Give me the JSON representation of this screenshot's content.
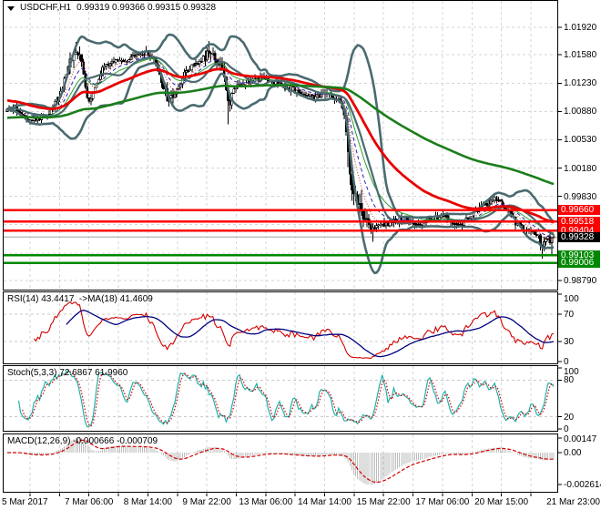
{
  "header": {
    "symbol": "USDCHF,H1",
    "quotes": "0.99319 0.99366 0.99315 0.99328"
  },
  "colors": {
    "background": "#ffffff",
    "grid": "#d6d6d6",
    "panel_border": "#000000",
    "candle": "#000000",
    "candle_up_fill": "#ffffff",
    "bollinger": "#4a6b70",
    "ma_red": "#e80000",
    "ma_green": "#1b7e1b",
    "ma_thin_green": "#2fa12f",
    "ma_thin_blue": "#2424b4",
    "ma_thin_red": "#c83232",
    "resistance": "#fe0000",
    "support": "#008900",
    "bid_line": "#bfbfbf",
    "bid_box": "#000000",
    "rsi_line": "#d40000",
    "rsi_ma": "#00007f",
    "indicator_level": "#c9c9c9",
    "stoch_main": "#20b2aa",
    "stoch_signal": "#d40000",
    "macd_hist": "#bdbdbd",
    "macd_signal": "#d40000",
    "text": "#000000"
  },
  "chart_data": {
    "type": "candlestick",
    "symbol": "USDCHF",
    "timeframe": "H1",
    "ohlc_display": {
      "open": "0.99319",
      "high": "0.99366",
      "low": "0.99315",
      "close": "0.99328"
    },
    "bars": 288,
    "price_path": [
      [
        0,
        1.0088
      ],
      [
        0.015,
        1.0092
      ],
      [
        0.035,
        1.0081
      ],
      [
        0.055,
        1.0078
      ],
      [
        0.075,
        1.0086
      ],
      [
        0.095,
        1.0106
      ],
      [
        0.11,
        1.0142
      ],
      [
        0.125,
        1.0164
      ],
      [
        0.135,
        1.0152
      ],
      [
        0.148,
        1.01
      ],
      [
        0.16,
        1.0117
      ],
      [
        0.175,
        1.0141
      ],
      [
        0.195,
        1.015
      ],
      [
        0.215,
        1.0152
      ],
      [
        0.235,
        1.0156
      ],
      [
        0.255,
        1.0159
      ],
      [
        0.27,
        1.0149
      ],
      [
        0.285,
        1.0121
      ],
      [
        0.295,
        1.0099
      ],
      [
        0.31,
        1.0116
      ],
      [
        0.33,
        1.0141
      ],
      [
        0.35,
        1.0149
      ],
      [
        0.368,
        1.016
      ],
      [
        0.385,
        1.0151
      ],
      [
        0.398,
        1.0132
      ],
      [
        0.405,
        1.0092
      ],
      [
        0.415,
        1.0119
      ],
      [
        0.44,
        1.0126
      ],
      [
        0.47,
        1.0129
      ],
      [
        0.5,
        1.0121
      ],
      [
        0.53,
        1.0113
      ],
      [
        0.56,
        1.0106
      ],
      [
        0.59,
        1.0109
      ],
      [
        0.608,
        1.0101
      ],
      [
        0.617,
        1.0088
      ],
      [
        0.625,
        1.0022
      ],
      [
        0.632,
        0.9986
      ],
      [
        0.645,
        0.9973
      ],
      [
        0.655,
        0.9953
      ],
      [
        0.668,
        0.9941
      ],
      [
        0.68,
        0.9951
      ],
      [
        0.695,
        0.9949
      ],
      [
        0.71,
        0.9953
      ],
      [
        0.725,
        0.9956
      ],
      [
        0.74,
        0.9949
      ],
      [
        0.755,
        0.9946
      ],
      [
        0.77,
        0.9953
      ],
      [
        0.785,
        0.9956
      ],
      [
        0.8,
        0.9959
      ],
      [
        0.815,
        0.9951
      ],
      [
        0.83,
        0.9949
      ],
      [
        0.845,
        0.9956
      ],
      [
        0.86,
        0.9966
      ],
      [
        0.875,
        0.9973
      ],
      [
        0.89,
        0.9979
      ],
      [
        0.9,
        0.9976
      ],
      [
        0.915,
        0.9966
      ],
      [
        0.93,
        0.9951
      ],
      [
        0.945,
        0.9943
      ],
      [
        0.96,
        0.9939
      ],
      [
        0.972,
        0.9931
      ],
      [
        0.98,
        0.9923
      ],
      [
        0.99,
        0.9929
      ],
      [
        1,
        0.99328
      ]
    ],
    "wick_events": [
      {
        "f": 0.125,
        "type": "high",
        "price": 1.0174
      },
      {
        "f": 0.255,
        "type": "high",
        "price": 1.0169
      },
      {
        "f": 0.368,
        "type": "high",
        "price": 1.0175
      },
      {
        "f": 0.405,
        "type": "low",
        "price": 1.0072
      },
      {
        "f": 0.67,
        "type": "low",
        "price": 0.9927
      },
      {
        "f": 0.978,
        "type": "low",
        "price": 0.9906
      },
      {
        "f": 0.995,
        "type": "low",
        "price": 0.9909
      }
    ],
    "volatility_zones": [
      [
        0.615,
        0.66,
        3.2
      ],
      [
        0.1,
        0.14,
        1.6
      ],
      [
        0.28,
        0.31,
        1.5
      ],
      [
        0.36,
        0.41,
        1.6
      ],
      [
        0.96,
        1,
        1.5
      ]
    ],
    "last_bar": {
      "open": 0.99319,
      "high": 0.99366,
      "low": 0.99315,
      "close": 0.99328
    },
    "y_axis": {
      "labels": [
        [
          "1.01920",
          1.0192
        ],
        [
          "1.01580",
          1.0158
        ],
        [
          "1.01230",
          1.0123
        ],
        [
          "1.00880",
          1.0088
        ],
        [
          "1.00530",
          1.0053
        ],
        [
          "1.00180",
          1.0018
        ],
        [
          "0.99830",
          0.9983
        ],
        [
          "0.98790",
          0.9879
        ]
      ],
      "hidden_grid": [
        0.9948,
        0.9913
      ]
    },
    "x_axis": {
      "labels": [
        "5 Mar 2017",
        "7 Mar 06:00",
        "8 Mar 14:00",
        "9 Mar 22:00",
        "13 Mar 06:00",
        "14 Mar 14:00",
        "15 Mar 22:00",
        "17 Mar 06:00",
        "20 Mar 15:00",
        "21 Mar 23:00"
      ]
    },
    "levels": {
      "resistance": [
        {
          "price": 0.9966,
          "label": "0.99660"
        },
        {
          "price": 0.99518,
          "label": "0.99518"
        },
        {
          "price": 0.99404,
          "label": "0.99404"
        }
      ],
      "support": [
        {
          "price": 0.99103,
          "label": "0.99103"
        },
        {
          "price": 0.99006,
          "label": "0.99006"
        }
      ],
      "bid": {
        "price": 0.99328,
        "label": "0.99328"
      }
    },
    "overlays": {
      "bb_period": 20,
      "bb_dev": 2,
      "ema_red": 55,
      "ema_red_seed": 1.0102,
      "ema_green": 170,
      "ema_green_seed": 1.008,
      "ema_dotted_red": 8,
      "ema_dash_blue": 13,
      "ema_thin_green": 21
    },
    "rsi": {
      "label": "RSI(14) 43.4417  ->MA(18) 41.4609",
      "period": 14,
      "ma_period": 18,
      "last": 43.4417,
      "ma_last": 41.4609,
      "levels": [
        70,
        30
      ],
      "axis_labels": [
        [
          100,
          "100"
        ],
        [
          70,
          "70"
        ],
        [
          30,
          "30"
        ],
        [
          0,
          "0"
        ]
      ]
    },
    "stoch": {
      "label": "Stoch(5,3,3) 72.6867 61.9960",
      "k": 5,
      "slowing": 3,
      "d": 3,
      "last": 72.6867,
      "signal_last": 61.996,
      "levels": [
        80,
        20
      ],
      "axis_labels": [
        [
          100,
          "100"
        ],
        [
          80,
          "80"
        ],
        [
          20,
          "20"
        ],
        [
          0,
          "0"
        ]
      ]
    },
    "macd": {
      "label": "MACD(12,26,9) -0.000666 -0.000709",
      "fast": 12,
      "slow": 26,
      "signal": 9,
      "last": -0.000666,
      "signal_last": -0.000709,
      "axis_labels": [
        [
          "0.00147",
          "top"
        ],
        [
          "0.00",
          "zero"
        ],
        [
          "-0.002614",
          "min"
        ]
      ]
    }
  }
}
